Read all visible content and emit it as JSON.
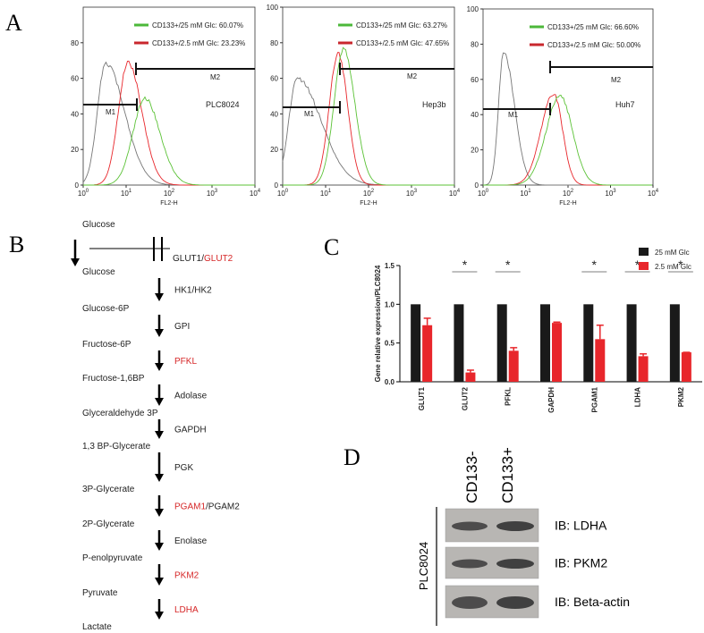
{
  "panel_labels": [
    "A",
    "B",
    "C",
    "D"
  ],
  "panel_a": {
    "plots": [
      {
        "legend": [
          {
            "text": "CD133+/25 mM Glc: 60.07%",
            "color": "#4cb83a"
          },
          {
            "text": "CD133+/2.5 mM Glc: 23.23%",
            "color": "#c9272d"
          }
        ],
        "name": "PLC8024",
        "gates": [
          "M1",
          "M2"
        ],
        "x_label": "FL2-H",
        "xticks": [
          {
            "base": "10",
            "exp": "0"
          },
          {
            "base": "10",
            "exp": "1"
          },
          {
            "base": "10",
            "exp": "2"
          },
          {
            "base": "10",
            "exp": "3"
          },
          {
            "base": "10",
            "exp": "4"
          }
        ],
        "ylim": [
          0,
          100
        ],
        "yticks": [
          0,
          20,
          40,
          60,
          80
        ]
      },
      {
        "legend": [
          {
            "text": "CD133+/25 mM Glc: 63.27%",
            "color": "#4cb83a"
          },
          {
            "text": "CD133+/2.5 mM Glc: 47.65%",
            "color": "#c9272d"
          }
        ],
        "name": "Hep3b",
        "gates": [
          "M1",
          "M2"
        ],
        "x_label": "FL2-H",
        "xticks": [
          {
            "base": "10",
            "exp": "0"
          },
          {
            "base": "10",
            "exp": "1"
          },
          {
            "base": "10",
            "exp": "2"
          },
          {
            "base": "10",
            "exp": "3"
          },
          {
            "base": "10",
            "exp": "4"
          }
        ],
        "ylim": [
          0,
          100
        ],
        "yticks": [
          0,
          20,
          40,
          60,
          80,
          100
        ]
      },
      {
        "legend": [
          {
            "text": "CD133+/25 mM Glc: 66.60%",
            "color": "#4cb83a"
          },
          {
            "text": "CD133+/2.5 mM Glc: 50.00%",
            "color": "#c9272d"
          }
        ],
        "name": "Huh7",
        "gates": [
          "M1",
          "M2"
        ],
        "x_label": "FL2-H",
        "xticks": [
          {
            "base": "10",
            "exp": "0"
          },
          {
            "base": "10",
            "exp": "1"
          },
          {
            "base": "10",
            "exp": "2"
          },
          {
            "base": "10",
            "exp": "3"
          },
          {
            "base": "10",
            "exp": "4"
          }
        ],
        "ylim": [
          0,
          100
        ],
        "yticks": [
          0,
          20,
          40,
          60,
          80,
          100
        ]
      }
    ]
  },
  "panel_b": {
    "metabolites": [
      "Glucose",
      "Glucose",
      "Glucose-6P",
      "Fructose-6P",
      "Fructose-1,6BP",
      "Glyceraldehyde 3P",
      "1,3 BP-Glycerate",
      "3P-Glycerate",
      "2P-Glycerate",
      "P-enolpyruvate",
      "Pyruvate",
      "Lactate"
    ],
    "enzymes": [
      [
        {
          "text": "GLUT1/"
        },
        {
          "text": "GLUT2",
          "highlight": true
        }
      ],
      [
        {
          "text": "HK1/HK2"
        }
      ],
      [
        {
          "text": "GPI"
        }
      ],
      [
        {
          "text": "PFKL",
          "highlight": true
        }
      ],
      [
        {
          "text": "Adolase"
        }
      ],
      [
        {
          "text": "GAPDH"
        }
      ],
      [
        {
          "text": "PGK"
        }
      ],
      [
        {
          "text": "PGAM1",
          "highlight": true
        },
        {
          "text": "/PGAM2"
        }
      ],
      [
        {
          "text": "Enolase"
        }
      ],
      [
        {
          "text": "PKM2",
          "highlight": true
        }
      ],
      [
        {
          "text": "LDHA",
          "highlight": true
        }
      ]
    ]
  },
  "chart_data": {
    "type": "bar",
    "y_label": "Gene relative expression/PLC8024",
    "categories": [
      "GLUT1",
      "GLUT2",
      "PFKL",
      "GAPDH",
      "PGAM1",
      "LDHA",
      "PKM2"
    ],
    "series": [
      {
        "name": "25 mM Glc",
        "color": "#1a1a1a",
        "values": [
          1.0,
          1.0,
          1.0,
          1.0,
          1.0,
          1.0,
          1.0
        ]
      },
      {
        "name": "2.5 mM Glc",
        "color": "#e8262b",
        "values": [
          0.73,
          0.12,
          0.4,
          0.76,
          0.55,
          0.33,
          0.38
        ],
        "errors": [
          0.09,
          0.03,
          0.04,
          0.01,
          0.18,
          0.03,
          0.0
        ]
      }
    ],
    "significance": [
      null,
      "*",
      "*",
      null,
      "*",
      "*",
      "*"
    ],
    "ylim": [
      0,
      1.5
    ],
    "yticks": [
      {
        "value": 0,
        "label": "0.0"
      },
      {
        "value": 0.5,
        "label": "0.5"
      },
      {
        "value": 1.0,
        "label": "1.0"
      },
      {
        "value": 1.5,
        "label": "1.5"
      }
    ],
    "legend": "top-right"
  },
  "panel_d": {
    "columns": [
      "CD133-",
      "CD133+"
    ],
    "cell_line": "PLC8024",
    "rows": [
      "IB: LDHA",
      "IB: PKM2",
      "IB: Beta-actin"
    ]
  }
}
